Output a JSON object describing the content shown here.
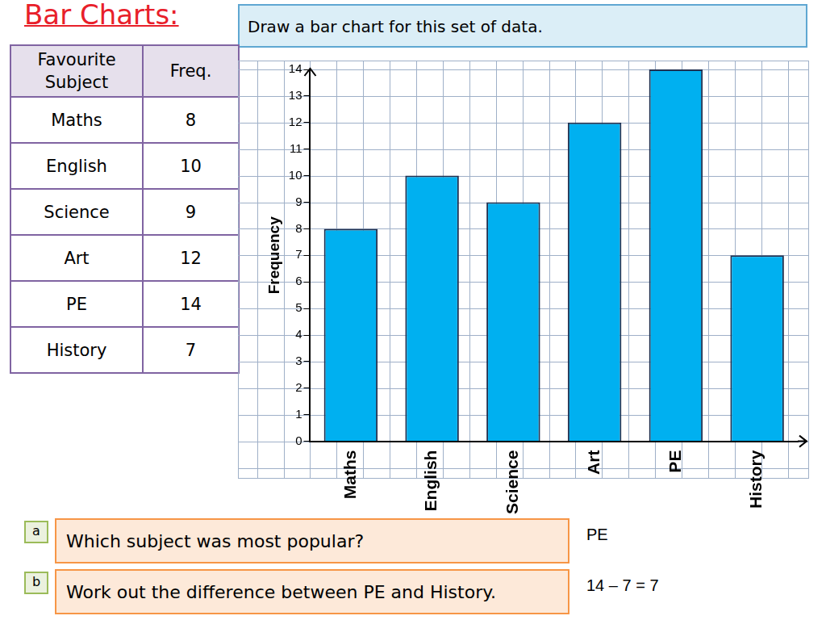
{
  "header": {
    "title": "Bar Charts:",
    "instruction": "Draw a bar chart for this set of data."
  },
  "table": {
    "columns": [
      "Favourite Subject",
      "Freq."
    ],
    "rows": [
      [
        "Maths",
        8
      ],
      [
        "English",
        10
      ],
      [
        "Science",
        9
      ],
      [
        "Art",
        12
      ],
      [
        "PE",
        14
      ],
      [
        "History",
        7
      ]
    ]
  },
  "chart_data": {
    "type": "bar",
    "y_label": "Frequency",
    "categories": [
      "Maths",
      "English",
      "Science",
      "Art",
      "PE",
      "History"
    ],
    "values": [
      8,
      10,
      9,
      12,
      14,
      7
    ],
    "color": "#00b0f0",
    "ylim": [
      0,
      14
    ],
    "yticks": [
      0,
      1,
      2,
      3,
      4,
      5,
      6,
      7,
      8,
      9,
      10,
      11,
      12,
      13,
      14
    ],
    "grid": true
  },
  "questions": [
    {
      "label": "a",
      "text": "Which subject was most popular?",
      "answer": "PE"
    },
    {
      "label": "b",
      "text": "Work out the difference between PE and History.",
      "answer": "14 – 7 = 7"
    }
  ]
}
